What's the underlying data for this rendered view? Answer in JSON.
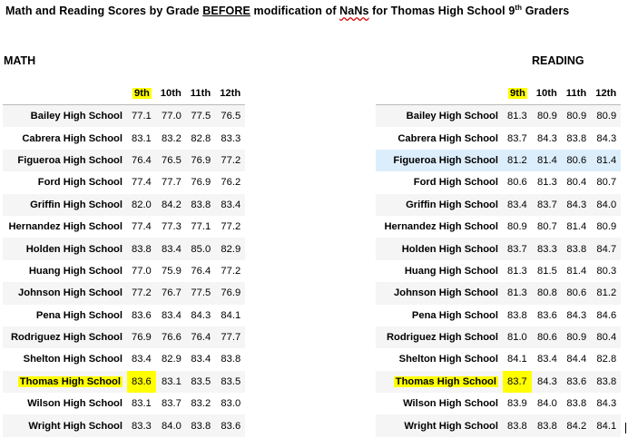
{
  "title": {
    "part1": "Math and Reading Scores by Grade ",
    "before": "BEFORE",
    "part2": " modification of ",
    "nans": "NaNs",
    "part3": " for Thomas High School 9",
    "sup": "th",
    "part4": " Graders"
  },
  "math": {
    "label": "MATH",
    "columns": [
      "9th",
      "10th",
      "11th",
      "12th"
    ],
    "rows": [
      {
        "school": "Bailey High School",
        "values": [
          "77.1",
          "77.0",
          "77.5",
          "76.5"
        ]
      },
      {
        "school": "Cabrera High School",
        "values": [
          "83.1",
          "83.2",
          "82.8",
          "83.3"
        ]
      },
      {
        "school": "Figueroa High School",
        "values": [
          "76.4",
          "76.5",
          "76.9",
          "77.2"
        ]
      },
      {
        "school": "Ford High School",
        "values": [
          "77.4",
          "77.7",
          "76.9",
          "76.2"
        ]
      },
      {
        "school": "Griffin High School",
        "values": [
          "82.0",
          "84.2",
          "83.8",
          "83.4"
        ]
      },
      {
        "school": "Hernandez High School",
        "values": [
          "77.4",
          "77.3",
          "77.1",
          "77.2"
        ]
      },
      {
        "school": "Holden High School",
        "values": [
          "83.8",
          "83.4",
          "85.0",
          "82.9"
        ]
      },
      {
        "school": "Huang High School",
        "values": [
          "77.0",
          "75.9",
          "76.4",
          "77.2"
        ]
      },
      {
        "school": "Johnson High School",
        "values": [
          "77.2",
          "76.7",
          "77.5",
          "76.9"
        ]
      },
      {
        "school": "Pena High School",
        "values": [
          "83.6",
          "83.4",
          "84.3",
          "84.1"
        ]
      },
      {
        "school": "Rodriguez High School",
        "values": [
          "76.9",
          "76.6",
          "76.4",
          "77.7"
        ]
      },
      {
        "school": "Shelton High School",
        "values": [
          "83.4",
          "82.9",
          "83.4",
          "83.8"
        ]
      },
      {
        "school": "Thomas High School",
        "values": [
          "83.6",
          "83.1",
          "83.5",
          "83.5"
        ]
      },
      {
        "school": "Wilson High School",
        "values": [
          "83.1",
          "83.7",
          "83.2",
          "83.0"
        ]
      },
      {
        "school": "Wright High School",
        "values": [
          "83.3",
          "84.0",
          "83.8",
          "83.6"
        ]
      }
    ]
  },
  "reading": {
    "label": "READING",
    "columns": [
      "9th",
      "10th",
      "11th",
      "12th"
    ],
    "rows": [
      {
        "school": "Bailey High School",
        "values": [
          "81.3",
          "80.9",
          "80.9",
          "80.9"
        ]
      },
      {
        "school": "Cabrera High School",
        "values": [
          "83.7",
          "84.3",
          "83.8",
          "84.3"
        ]
      },
      {
        "school": "Figueroa High School",
        "values": [
          "81.2",
          "81.4",
          "80.6",
          "81.4"
        ]
      },
      {
        "school": "Ford High School",
        "values": [
          "80.6",
          "81.3",
          "80.4",
          "80.7"
        ]
      },
      {
        "school": "Griffin High School",
        "values": [
          "83.4",
          "83.7",
          "84.3",
          "84.0"
        ]
      },
      {
        "school": "Hernandez High School",
        "values": [
          "80.9",
          "80.7",
          "81.4",
          "80.9"
        ]
      },
      {
        "school": "Holden High School",
        "values": [
          "83.7",
          "83.3",
          "83.8",
          "84.7"
        ]
      },
      {
        "school": "Huang High School",
        "values": [
          "81.3",
          "81.5",
          "81.4",
          "80.3"
        ]
      },
      {
        "school": "Johnson High School",
        "values": [
          "81.3",
          "80.8",
          "80.6",
          "81.2"
        ]
      },
      {
        "school": "Pena High School",
        "values": [
          "83.8",
          "83.6",
          "84.3",
          "84.6"
        ]
      },
      {
        "school": "Rodriguez High School",
        "values": [
          "81.0",
          "80.6",
          "80.9",
          "80.4"
        ]
      },
      {
        "school": "Shelton High School",
        "values": [
          "84.1",
          "83.4",
          "84.4",
          "82.8"
        ]
      },
      {
        "school": "Thomas High School",
        "values": [
          "83.7",
          "84.3",
          "83.6",
          "83.8"
        ]
      },
      {
        "school": "Wilson High School",
        "values": [
          "83.9",
          "84.0",
          "83.8",
          "84.3"
        ]
      },
      {
        "school": "Wright High School",
        "values": [
          "83.8",
          "83.8",
          "84.2",
          "84.1"
        ]
      }
    ]
  },
  "highlight": {
    "school": "Thomas High School",
    "column": "9th",
    "color": "#ffff00"
  },
  "hovered_row_reading": "Figueroa High School",
  "colors": {
    "hover": "#dceefb",
    "stripe": "#f5f5f5",
    "nans_underline": "#d00000"
  }
}
